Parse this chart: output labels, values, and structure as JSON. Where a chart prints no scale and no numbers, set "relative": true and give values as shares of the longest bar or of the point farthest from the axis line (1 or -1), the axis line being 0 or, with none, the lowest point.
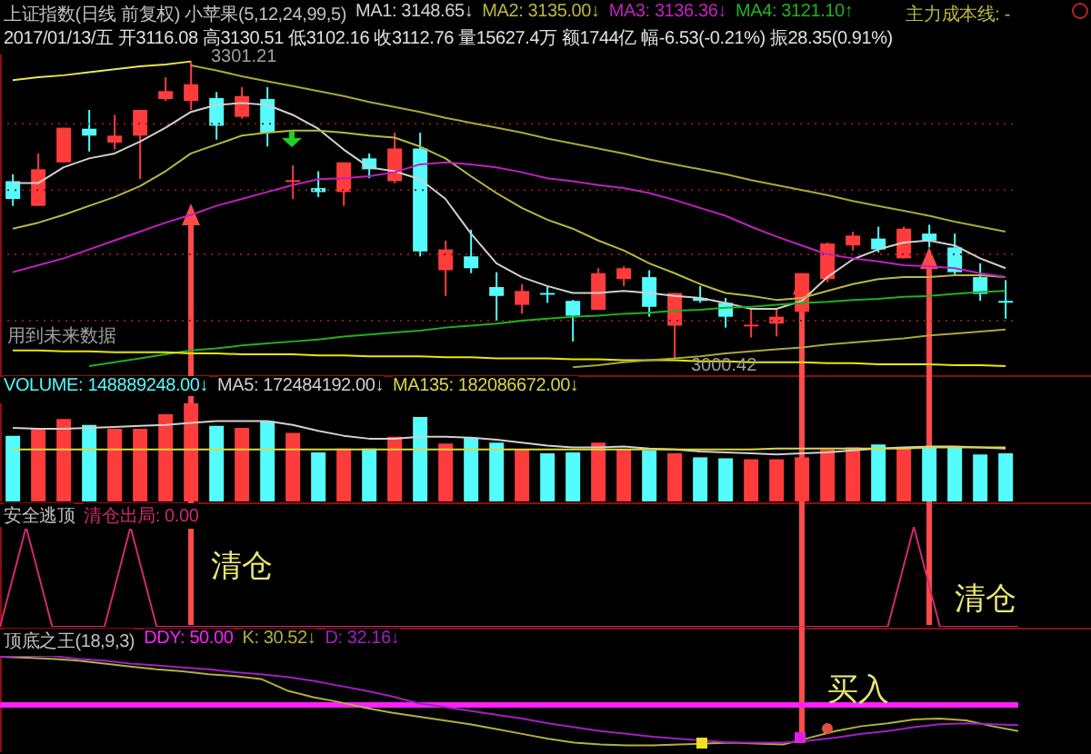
{
  "chart_data": [
    {
      "type": "candlestick",
      "title": "上证指数(日线 前复权) 小苹果(5,12,24,99,5)",
      "subtitle": "2017/01/13/五 开3116.08 高3130.51 低3102.16 收3112.76 量15627.4万 额1744亿 幅-6.53(-0.21%) 振28.35(0.91%)",
      "categories": [
        null,
        null,
        null,
        null,
        null,
        null,
        null,
        null,
        null,
        null,
        null,
        null,
        null,
        null,
        null,
        null,
        null,
        null,
        null,
        null,
        null,
        null,
        null,
        null,
        null,
        null,
        null,
        null,
        null,
        null,
        null,
        null,
        null,
        null,
        null,
        null,
        null,
        null,
        null,
        null
      ],
      "ohlc": [
        [
          3180,
          3187,
          3155,
          3162
        ],
        [
          3155,
          3208,
          3155,
          3192
        ],
        [
          3199,
          3234,
          3199,
          3234
        ],
        [
          3233,
          3252,
          3210,
          3226
        ],
        [
          3219,
          3247,
          3212,
          3226
        ],
        [
          3226,
          3252,
          3182,
          3252
        ],
        [
          3263,
          3285,
          3261,
          3271
        ],
        [
          3261,
          3301.21,
          3252,
          3278
        ],
        [
          3264,
          3270,
          3222,
          3236
        ],
        [
          3245,
          3275,
          3243,
          3266
        ],
        [
          3263,
          3275,
          3215,
          3229
        ],
        [
          3180,
          3196,
          3162,
          3181
        ],
        [
          3173,
          3190,
          3164,
          3169
        ],
        [
          3169,
          3199,
          3155,
          3199
        ],
        [
          3203,
          3208,
          3183,
          3192
        ],
        [
          3180,
          3229,
          3178,
          3213
        ],
        [
          3213,
          3229,
          3104,
          3109
        ],
        [
          3090,
          3120,
          3064,
          3111
        ],
        [
          3104,
          3131,
          3087,
          3092
        ],
        [
          3073,
          3088,
          3039,
          3064
        ],
        [
          3055,
          3076,
          3046,
          3069
        ],
        [
          3067,
          3074,
          3057,
          3066
        ],
        [
          3059,
          3060,
          3018,
          3044
        ],
        [
          3050,
          3092,
          3050,
          3087
        ],
        [
          3081,
          3094,
          3074,
          3092
        ],
        [
          3083,
          3090,
          3043,
          3053
        ],
        [
          3034,
          3067,
          3000.42,
          3067
        ],
        [
          3062,
          3074,
          3057,
          3059
        ],
        [
          3057,
          3062,
          3032,
          3043
        ],
        [
          3034,
          3050,
          3022,
          3035
        ],
        [
          3036,
          3050,
          3023,
          3043
        ],
        [
          3048,
          3087,
          3046,
          3087
        ],
        [
          3081,
          3118,
          3078,
          3117
        ],
        [
          3115,
          3129,
          3110,
          3125
        ],
        [
          3122,
          3134,
          3108,
          3111
        ],
        [
          3102,
          3134,
          3102,
          3132
        ],
        [
          3127,
          3136,
          3113,
          3120
        ],
        [
          3113,
          3127,
          3085,
          3088
        ],
        [
          3083,
          3097,
          3059,
          3066
        ],
        [
          3059,
          3080,
          3041,
          3058
        ]
      ],
      "colors": [
        "#54fcfc",
        "#ff3c3c",
        "#ff3c3c",
        "#54fcfc",
        "#ff3c3c",
        "#ff3c3c",
        "#ff3c3c",
        "#ff3c3c",
        "#54fcfc",
        "#ff3c3c",
        "#54fcfc",
        "#ff3c3c",
        "#54fcfc",
        "#ff3c3c",
        "#54fcfc",
        "#ff3c3c",
        "#54fcfc",
        "#ff3c3c",
        "#54fcfc",
        "#54fcfc",
        "#ff3c3c",
        "#54fcfc",
        "#54fcfc",
        "#ff3c3c",
        "#ff3c3c",
        "#54fcfc",
        "#ff3c3c",
        "#54fcfc",
        "#54fcfc",
        "#ff3c3c",
        "#ff3c3c",
        "#ff3c3c",
        "#ff3c3c",
        "#ff3c3c",
        "#54fcfc",
        "#ff3c3c",
        "#54fcfc",
        "#54fcfc",
        "#54fcfc",
        "#54fcfc"
      ],
      "series": [
        {
          "name": "MA1: 3148.65↓",
          "type": "line",
          "color": "#d0d0d0",
          "values": [
            3178,
            3178,
            3194,
            3203,
            3208,
            3220,
            3234,
            3250,
            3257,
            3259,
            3257,
            3247,
            3233,
            3212,
            3194,
            3190,
            3182,
            3162,
            3127,
            3097,
            3083,
            3074,
            3067,
            3067,
            3069,
            3067,
            3064,
            3062,
            3057,
            3051,
            3051,
            3059,
            3083,
            3101,
            3111,
            3118,
            3120,
            3115,
            3102,
            3092
          ]
        },
        {
          "name": "MA2: 3135.00↓",
          "type": "line",
          "color": "#b8b840",
          "values": [
            3132,
            3138,
            3146,
            3155,
            3164,
            3175,
            3190,
            3208,
            3217,
            3226,
            3229,
            3231,
            3231,
            3229,
            3226,
            3224,
            3215,
            3203,
            3185,
            3168,
            3153,
            3141,
            3132,
            3120,
            3110,
            3097,
            3087,
            3076,
            3067,
            3064,
            3060,
            3062,
            3069,
            3076,
            3081,
            3083,
            3083,
            3085,
            3085,
            3083
          ]
        },
        {
          "name": "MA3: 3136.36↓",
          "type": "line",
          "color": "#c020c0",
          "values": [
            3088,
            3095,
            3102,
            3111,
            3120,
            3129,
            3138,
            3146,
            3155,
            3162,
            3169,
            3176,
            3182,
            3183,
            3185,
            3189,
            3197,
            3199,
            3197,
            3194,
            3189,
            3183,
            3180,
            3176,
            3173,
            3168,
            3161,
            3153,
            3145,
            3134,
            3124,
            3115,
            3106,
            3102,
            3099,
            3095,
            3094,
            3092,
            3087,
            3083
          ]
        },
        {
          "name": "MA4: 3121.10↑",
          "type": "line",
          "color": "#20b020",
          "values": [
            null,
            null,
            null,
            2993,
            2997,
            3001,
            3005,
            3009,
            3011,
            3014,
            3016,
            3018,
            3020,
            3023,
            3025,
            3027,
            3029,
            3032,
            3034,
            3036,
            3039,
            3041,
            3043,
            3044,
            3046,
            3047,
            3049,
            3050,
            3052,
            3053,
            3055,
            3057,
            3058,
            3060,
            3061,
            3063,
            3064,
            3066,
            3068,
            3069
          ]
        },
        {
          "type": "line",
          "color": "#e8e850",
          "values": [
            3282,
            3285,
            3287,
            3290,
            3293,
            3296,
            3298,
            3301,
            null,
            null,
            null,
            null,
            null,
            null,
            null,
            null,
            null,
            null,
            null,
            null,
            null,
            null,
            null,
            null,
            null,
            null,
            null,
            null,
            null,
            null,
            null,
            null,
            null,
            null,
            null,
            null,
            null,
            null,
            null,
            null
          ]
        },
        {
          "type": "line",
          "color": "#a8a838",
          "values": [
            null,
            null,
            null,
            null,
            null,
            null,
            null,
            3297,
            3292,
            3286,
            3281,
            3276,
            3271,
            3266,
            3260,
            3255,
            3250,
            3244,
            3239,
            3234,
            3229,
            3223,
            3218,
            3213,
            3208,
            3202,
            3197,
            3192,
            3187,
            3181,
            3176,
            3171,
            3166,
            3160,
            3155,
            3150,
            3145,
            3139,
            3134,
            3129
          ]
        },
        {
          "type": "line",
          "color": "#e8e800",
          "values": [
            3009,
            3009,
            3008,
            3008,
            3007,
            3007,
            3007,
            3006,
            3006,
            3005,
            3005,
            3005,
            3004,
            3004,
            3003,
            3003,
            3003,
            3002,
            3002,
            3001,
            3001,
            3001,
            3000,
            3000,
            2999,
            2999,
            2999,
            2998,
            2998,
            2997,
            2997,
            2997,
            2996,
            2996,
            2995,
            2995,
            2995,
            2994,
            2994,
            2993
          ]
        },
        {
          "type": "line",
          "color": "#a8a838",
          "values": [
            null,
            null,
            null,
            null,
            null,
            null,
            null,
            null,
            null,
            null,
            null,
            null,
            null,
            null,
            null,
            null,
            null,
            null,
            null,
            null,
            null,
            null,
            2992,
            2994,
            2997,
            2999,
            3001,
            3003,
            3006,
            3008,
            3010,
            3012,
            3015,
            3017,
            3019,
            3021,
            3024,
            3026,
            3028,
            3030
          ]
        }
      ],
      "ylim": [
        2983,
        3308
      ],
      "yticks": [
        {
          "value": 3238,
          "label": null
        },
        {
          "value": 3171,
          "label": null
        },
        {
          "value": 3106,
          "label": null
        },
        {
          "value": 3039,
          "label": null
        }
      ],
      "grid": "y",
      "legend": "top",
      "tick_labels": false,
      "annotations": [
        "3301.21",
        "3000.42",
        "主力成本线: -",
        "用到未来数据"
      ]
    },
    {
      "type": "bar",
      "relative": true,
      "categories": [
        null,
        null,
        null,
        null,
        null,
        null,
        null,
        null,
        null,
        null,
        null,
        null,
        null,
        null,
        null,
        null,
        null,
        null,
        null,
        null,
        null,
        null,
        null,
        null,
        null,
        null,
        null,
        null,
        null,
        null,
        null,
        null,
        null,
        null,
        null,
        null,
        null,
        null,
        null,
        null
      ],
      "series": [
        {
          "name": "VOLUME: 148889248.00↓",
          "type": "bar",
          "colors": [
            "#54fcfc",
            "#ff3c3c",
            "#ff3c3c",
            "#54fcfc",
            "#ff3c3c",
            "#ff3c3c",
            "#ff3c3c",
            "#ff3c3c",
            "#54fcfc",
            "#ff3c3c",
            "#54fcfc",
            "#ff3c3c",
            "#54fcfc",
            "#ff3c3c",
            "#54fcfc",
            "#ff3c3c",
            "#54fcfc",
            "#ff3c3c",
            "#54fcfc",
            "#54fcfc",
            "#ff3c3c",
            "#54fcfc",
            "#54fcfc",
            "#ff3c3c",
            "#ff3c3c",
            "#54fcfc",
            "#ff3c3c",
            "#54fcfc",
            "#54fcfc",
            "#ff3c3c",
            "#ff3c3c",
            "#ff3c3c",
            "#ff3c3c",
            "#ff3c3c",
            "#54fcfc",
            "#ff3c3c",
            "#54fcfc",
            "#54fcfc",
            "#54fcfc",
            "#54fcfc"
          ],
          "values": [
            0.67,
            0.74,
            0.84,
            0.78,
            0.74,
            0.74,
            0.89,
            1,
            0.77,
            0.75,
            0.82,
            0.7,
            0.5,
            0.54,
            0.54,
            0.66,
            0.86,
            0.59,
            0.65,
            0.6,
            0.53,
            0.49,
            0.5,
            0.6,
            0.53,
            0.52,
            0.49,
            0.45,
            0.44,
            0.43,
            0.43,
            0.45,
            0.53,
            0.55,
            0.58,
            0.54,
            0.56,
            0.55,
            0.48,
            0.49
          ]
        },
        {
          "name": "MA5: 172484192.00↓",
          "type": "line",
          "color": "#d0d0d0",
          "values": [
            0.75,
            0.74,
            0.74,
            0.75,
            0.76,
            0.77,
            0.78,
            0.8,
            0.82,
            0.82,
            0.82,
            0.78,
            0.72,
            0.67,
            0.64,
            0.64,
            0.66,
            0.66,
            0.65,
            0.63,
            0.6,
            0.57,
            0.55,
            0.55,
            0.56,
            0.54,
            0.53,
            0.51,
            0.5,
            0.49,
            0.48,
            0.49,
            0.5,
            0.52,
            0.54,
            0.55,
            0.56,
            0.56,
            0.55,
            0.54
          ]
        },
        {
          "name": "MA135: 182086672.00↓",
          "type": "line",
          "color": "#d8d840",
          "values": [
            0.53,
            0.53,
            0.53,
            0.53,
            0.53,
            0.53,
            0.53,
            0.53,
            0.53,
            0.53,
            0.53,
            0.53,
            0.53,
            0.53,
            0.53,
            0.53,
            0.53,
            0.53,
            0.53,
            0.53,
            0.53,
            0.53,
            0.53,
            0.53,
            0.53,
            0.53,
            0.53,
            0.53,
            0.53,
            0.53,
            0.54,
            0.54,
            0.54,
            0.54,
            0.54,
            0.54,
            0.55,
            0.55,
            0.55,
            0.55
          ]
        }
      ],
      "legend": "top left",
      "tick_labels": false
    },
    {
      "type": "line",
      "relative": true,
      "title": "安全逃顶",
      "categories": [
        null,
        null,
        null,
        null,
        null,
        null,
        null,
        null,
        null,
        null,
        null,
        null,
        null,
        null,
        null,
        null,
        null,
        null,
        null,
        null,
        null,
        null,
        null,
        null,
        null,
        null,
        null,
        null,
        null,
        null,
        null,
        null,
        null,
        null,
        null,
        null,
        null,
        null,
        null,
        null
      ],
      "series": [
        {
          "name": "清仓出局: 0.00",
          "color": "#d02a70",
          "values": [
            0,
            1,
            0,
            0,
            0,
            1,
            0,
            0,
            0,
            0,
            0,
            0,
            0,
            0,
            0,
            0,
            0,
            0,
            0,
            0,
            0,
            0,
            0,
            0,
            0,
            0,
            0,
            0,
            0,
            0,
            0,
            0,
            0,
            0,
            0,
            1,
            0,
            0,
            0,
            0
          ]
        }
      ],
      "legend": "top left",
      "tick_labels": false,
      "annotations": [
        "清仓",
        "清仓"
      ]
    },
    {
      "type": "line",
      "relative": true,
      "title": "顶底之王(18,9,3)",
      "categories": [
        null,
        null,
        null,
        null,
        null,
        null,
        null,
        null,
        null,
        null,
        null,
        null,
        null,
        null,
        null,
        null,
        null,
        null,
        null,
        null,
        null,
        null,
        null,
        null,
        null,
        null,
        null,
        null,
        null,
        null,
        null,
        null,
        null,
        null,
        null,
        null,
        null,
        null,
        null,
        null
      ],
      "series": [
        {
          "name": "DDY: 50.00",
          "color": "#ff20ff",
          "values": [
            0.49,
            0.49,
            0.49,
            0.49,
            0.49,
            0.49,
            0.49,
            0.49,
            0.49,
            0.49,
            0.49,
            0.49,
            0.49,
            0.49,
            0.49,
            0.49,
            0.49,
            0.49,
            0.49,
            0.49,
            0.49,
            0.49,
            0.49,
            0.49,
            0.49,
            0.49,
            0.49,
            0.49,
            0.49,
            0.49,
            0.49,
            0.49,
            0.49,
            0.49,
            0.49,
            0.49,
            0.49,
            0.49,
            0.49,
            0.49
          ]
        },
        {
          "name": "K: 30.52↓",
          "color": "#b0b040",
          "values": [
            0.99,
            0.98,
            0.97,
            0.95,
            0.92,
            0.89,
            0.86,
            0.84,
            0.81,
            0.79,
            0.76,
            0.64,
            0.57,
            0.52,
            0.46,
            0.41,
            0.37,
            0.33,
            0.29,
            0.24,
            0.19,
            0.14,
            0.1,
            0.08,
            0.07,
            0.07,
            0.08,
            0.09,
            0.1,
            0.09,
            0.08,
            0.15,
            0.22,
            0.27,
            0.3,
            0.34,
            0.35,
            0.33,
            0.27,
            0.22
          ]
        },
        {
          "name": "D: 32.16↓",
          "color": "#a020c0",
          "values": [
            0.99,
            1,
            1,
            0.97,
            0.95,
            0.92,
            0.9,
            0.88,
            0.86,
            0.83,
            0.81,
            0.78,
            0.74,
            0.69,
            0.64,
            0.58,
            0.51,
            0.47,
            0.43,
            0.39,
            0.35,
            0.3,
            0.26,
            0.22,
            0.19,
            0.16,
            0.14,
            0.12,
            0.1,
            0.1,
            0.1,
            0.12,
            0.15,
            0.19,
            0.22,
            0.26,
            0.29,
            0.3,
            0.29,
            0.28
          ]
        }
      ],
      "legend": "top left",
      "tick_labels": false,
      "annotations": [
        "买入"
      ]
    }
  ]
}
